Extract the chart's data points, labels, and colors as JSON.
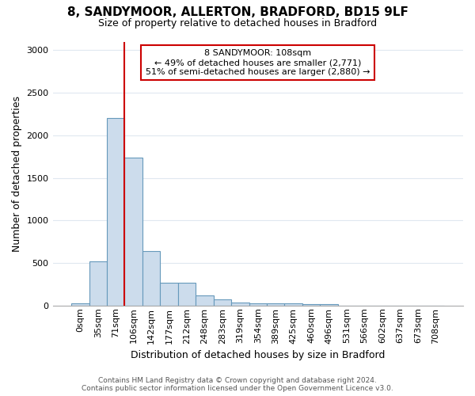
{
  "title1": "8, SANDYMOOR, ALLERTON, BRADFORD, BD15 9LF",
  "title2": "Size of property relative to detached houses in Bradford",
  "xlabel": "Distribution of detached houses by size in Bradford",
  "ylabel": "Number of detached properties",
  "bar_color": "#ccdcec",
  "bar_edge_color": "#6699bb",
  "categories": [
    "0sqm",
    "35sqm",
    "71sqm",
    "106sqm",
    "142sqm",
    "177sqm",
    "212sqm",
    "248sqm",
    "283sqm",
    "319sqm",
    "354sqm",
    "389sqm",
    "425sqm",
    "460sqm",
    "496sqm",
    "531sqm",
    "566sqm",
    "602sqm",
    "637sqm",
    "673sqm",
    "708sqm"
  ],
  "values": [
    25,
    520,
    2200,
    1740,
    640,
    265,
    265,
    120,
    70,
    38,
    30,
    28,
    28,
    20,
    20,
    0,
    0,
    0,
    0,
    0,
    0
  ],
  "red_line_index": 3,
  "marker_label": "8 SANDYMOOR: 108sqm",
  "annotation_line1": "← 49% of detached houses are smaller (2,771)",
  "annotation_line2": "51% of semi-detached houses are larger (2,880) →",
  "ylim": [
    0,
    3100
  ],
  "yticks": [
    0,
    500,
    1000,
    1500,
    2000,
    2500,
    3000
  ],
  "footer1": "Contains HM Land Registry data © Crown copyright and database right 2024.",
  "footer2": "Contains public sector information licensed under the Open Government Licence v3.0.",
  "bg_color": "#ffffff",
  "grid_color": "#e0e8f0",
  "annotation_box_edge": "#cc0000",
  "red_line_color": "#cc0000",
  "title1_fontsize": 11,
  "title2_fontsize": 9,
  "ylabel_fontsize": 9,
  "xlabel_fontsize": 9,
  "tick_fontsize": 8,
  "footer_fontsize": 6.5
}
